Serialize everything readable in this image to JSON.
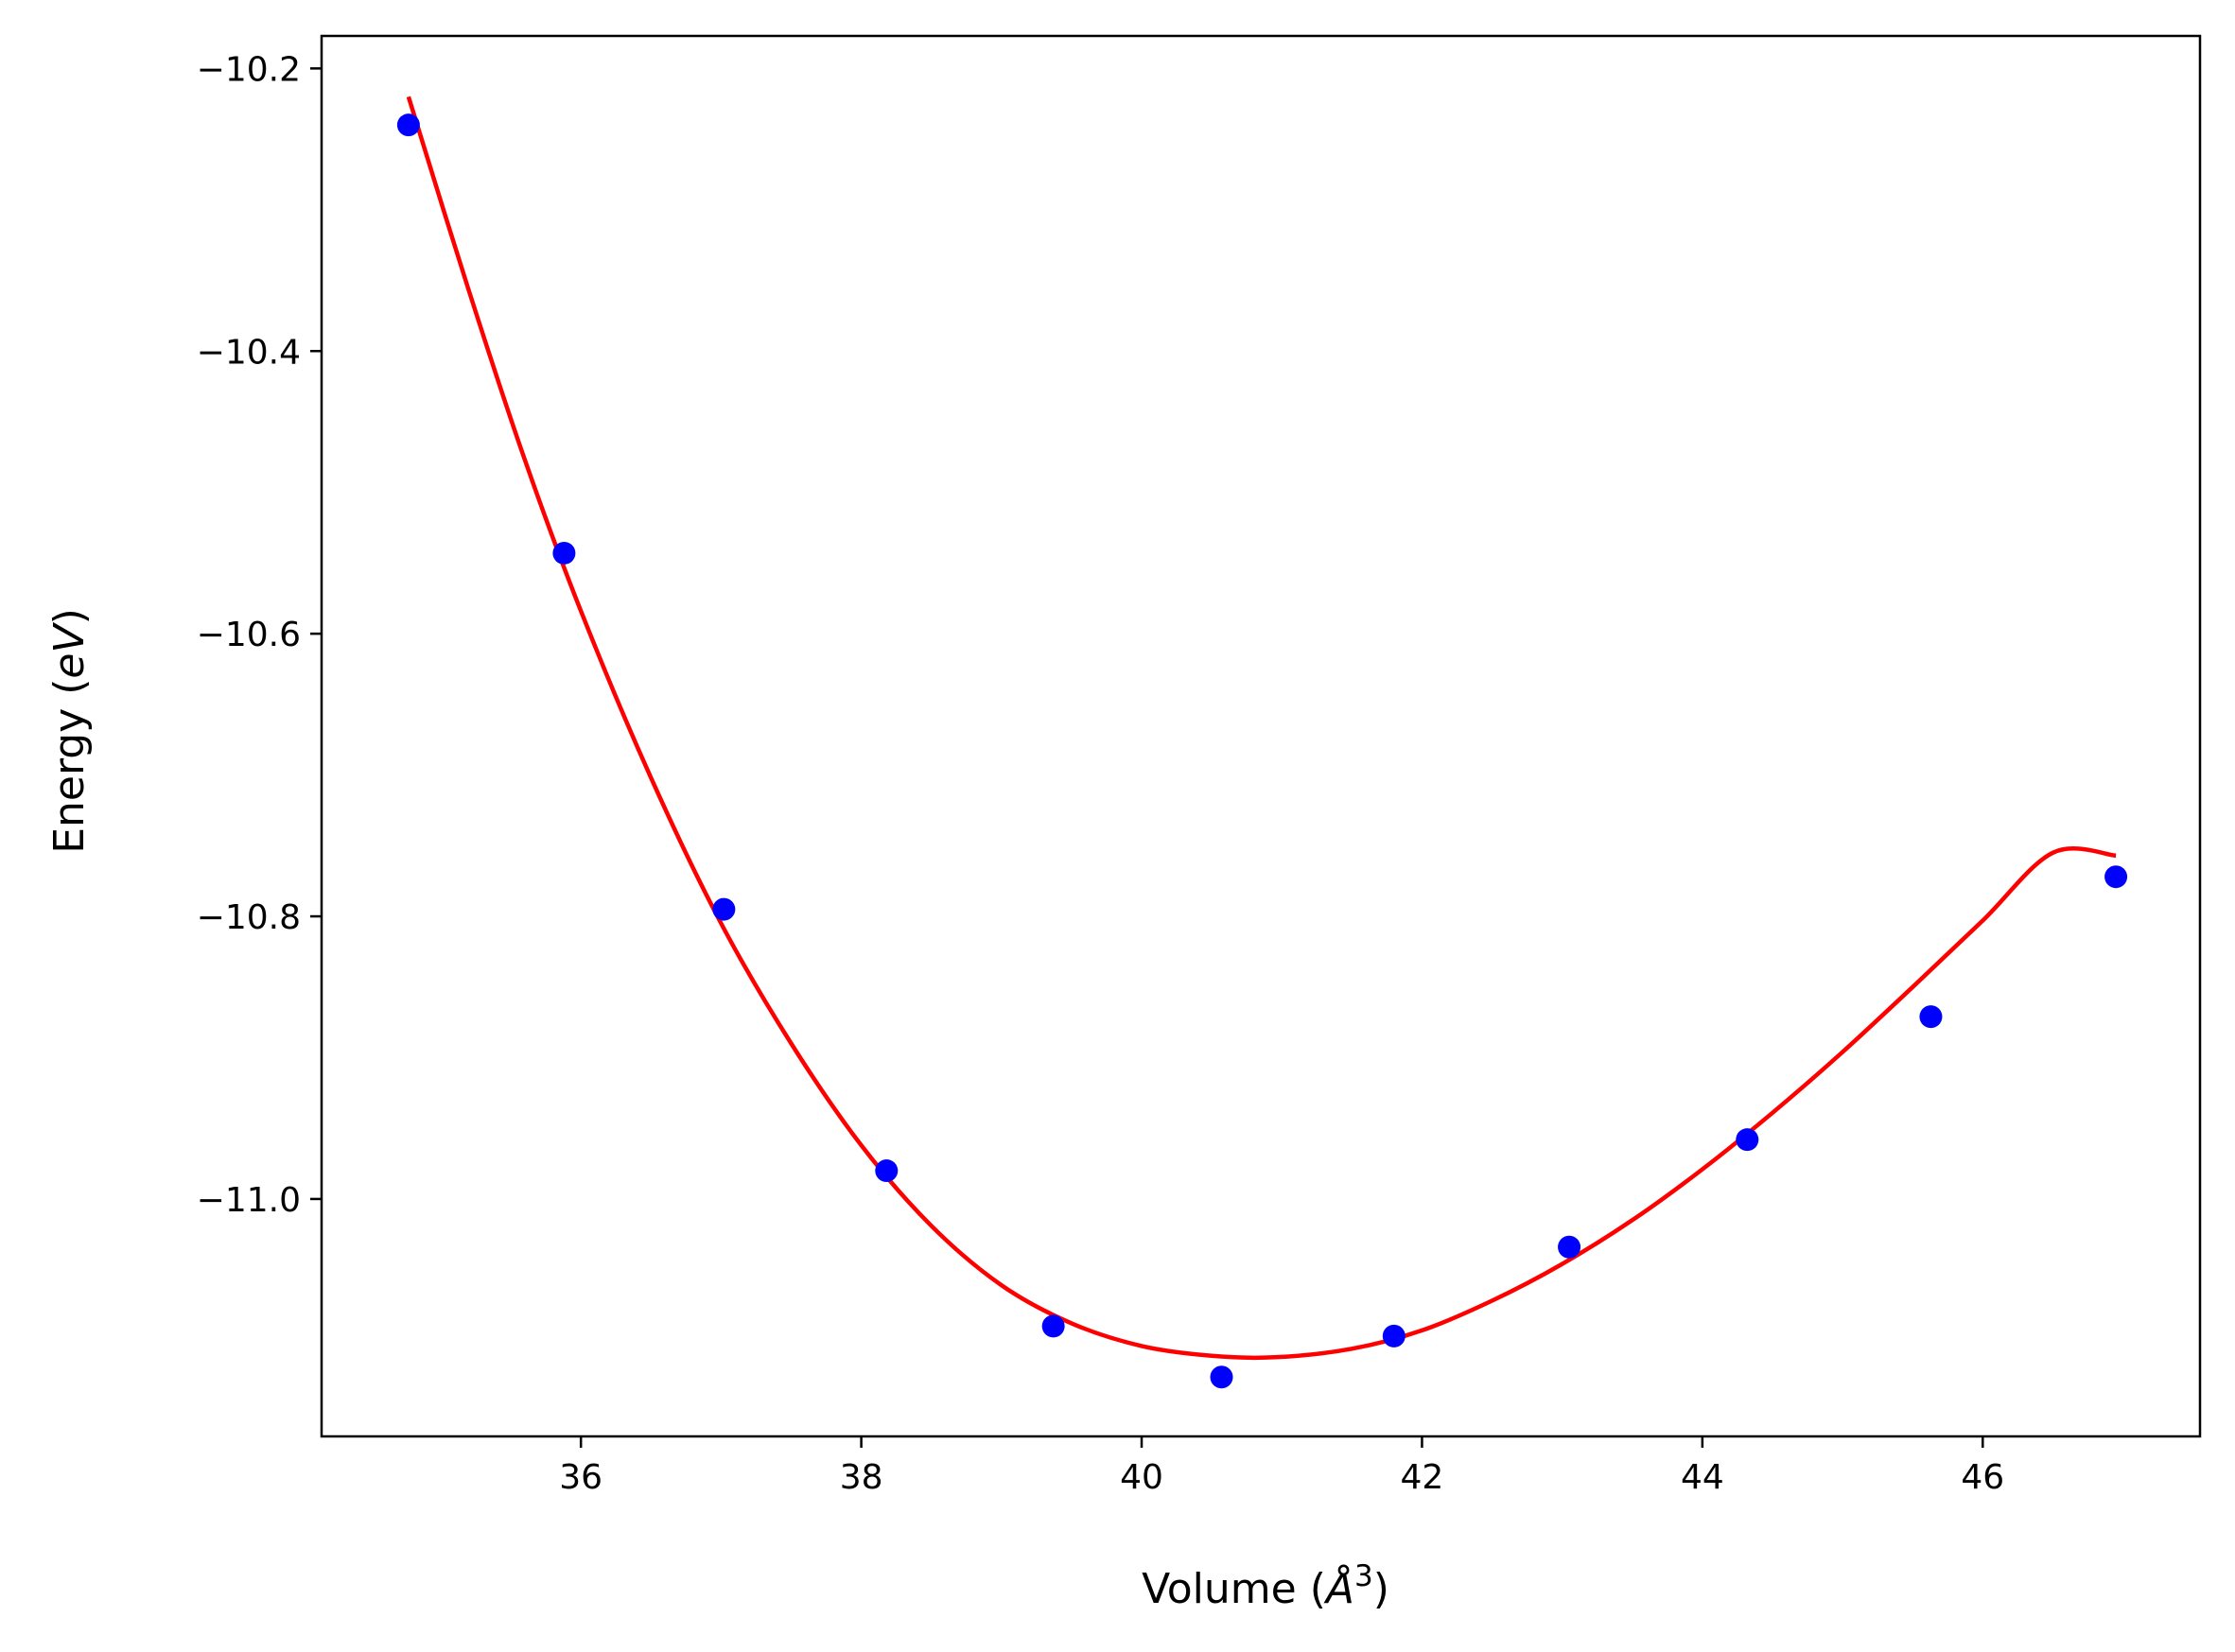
{
  "chart_data": {
    "type": "scatter",
    "title": "",
    "xlabel": {
      "prefix": "Volume (",
      "unit": "Å",
      "power": "3",
      "suffix": ")"
    },
    "ylabel": {
      "prefix": "Energy (",
      "unit": "eV",
      "suffix": ")"
    },
    "xlim": [
      34.15,
      47.55
    ],
    "ylim": [
      -11.168,
      -10.177
    ],
    "xticks": [
      36,
      38,
      40,
      42,
      44,
      46
    ],
    "yticks": [
      -10.2,
      -10.4,
      -10.6,
      -10.8,
      -11.0
    ],
    "grid": false,
    "colors": {
      "points": "#0000ff",
      "fit": "#ff0000",
      "axes": "#000000"
    },
    "series": [
      {
        "kind": "points",
        "x": [
          34.77,
          35.88,
          37.02,
          38.18,
          39.37,
          40.57,
          41.8,
          43.05,
          44.32,
          45.63,
          46.95
        ],
        "y": [
          -10.24,
          -10.543,
          -10.795,
          -10.98,
          -11.09,
          -11.126,
          -11.097,
          -11.034,
          -10.958,
          -10.871,
          -10.772
        ]
      },
      {
        "kind": "fit",
        "x": [
          34.77,
          35.2,
          35.6,
          36.0,
          36.5,
          37.0,
          37.5,
          38.0,
          38.5,
          39.0,
          39.5,
          40.0,
          40.5,
          40.95,
          41.5,
          42.0,
          42.5,
          43.0,
          43.5,
          44.0,
          44.5,
          45.0,
          45.5,
          46.0,
          46.5,
          46.95
        ],
        "y": [
          -10.22,
          -10.357,
          -10.477,
          -10.584,
          -10.702,
          -10.805,
          -10.89,
          -10.962,
          -11.019,
          -11.061,
          -11.088,
          -11.104,
          -11.111,
          -11.112,
          -11.106,
          -11.093,
          -11.072,
          -11.046,
          -11.015,
          -10.979,
          -10.939,
          -10.896,
          -10.85,
          -10.803,
          -10.755,
          -10.757
        ]
      }
    ]
  }
}
